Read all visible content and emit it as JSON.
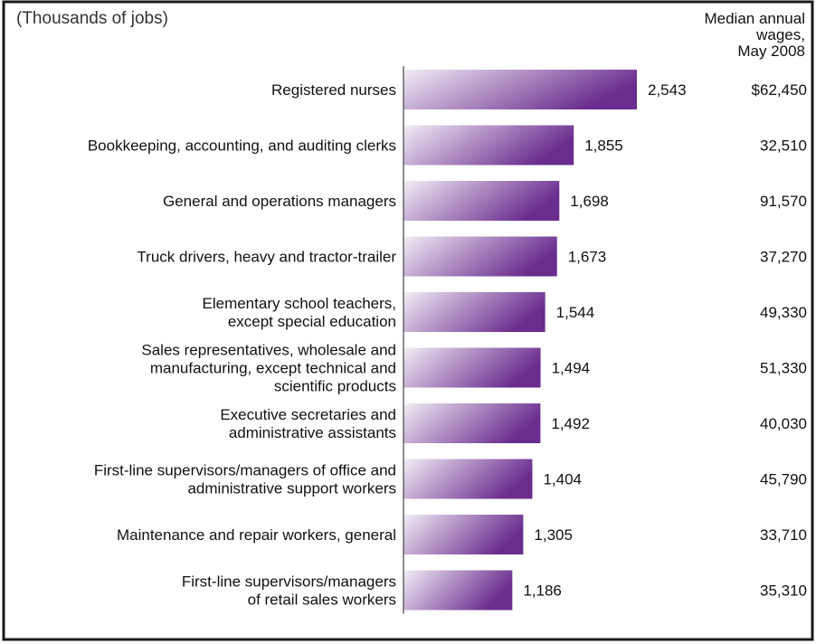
{
  "header": {
    "unit_note": "(Thousands of jobs)",
    "wage_header": [
      "Median annual",
      "wages,",
      "May 2008"
    ]
  },
  "colors": {
    "bar_dark": "#6a2c8e",
    "bar_light": "#f3eef6",
    "frame": "#1a1a1a",
    "axis": "#444444"
  },
  "chart_data": {
    "type": "bar",
    "orientation": "horizontal",
    "categories": [
      [
        "Registered nurses"
      ],
      [
        "Bookkeeping, accounting, and auditing clerks"
      ],
      [
        "General and operations managers"
      ],
      [
        "Truck drivers, heavy and tractor-trailer"
      ],
      [
        "Elementary school teachers,",
        "except special education"
      ],
      [
        "Sales representatives, wholesale and",
        "manufacturing, except technical and",
        "scientific products"
      ],
      [
        "Executive secretaries and",
        "administrative assistants"
      ],
      [
        "First-line supervisors/managers of office and",
        "administrative support workers"
      ],
      [
        "Maintenance and repair workers, general"
      ],
      [
        "First-line supervisors/managers",
        "of retail sales workers"
      ]
    ],
    "values": [
      2543,
      1855,
      1698,
      1673,
      1544,
      1494,
      1492,
      1404,
      1305,
      1186
    ],
    "value_labels": [
      "2,543",
      "1,855",
      "1,698",
      "1,673",
      "1,544",
      "1,494",
      "1,492",
      "1,404",
      "1,305",
      "1,186"
    ],
    "wages": [
      "$62,450",
      "32,510",
      "91,570",
      "37,270",
      "49,330",
      "51,330",
      "40,030",
      "45,790",
      "33,710",
      "35,310"
    ],
    "xlim": [
      0,
      2543
    ],
    "grid": false,
    "legend": "none"
  }
}
